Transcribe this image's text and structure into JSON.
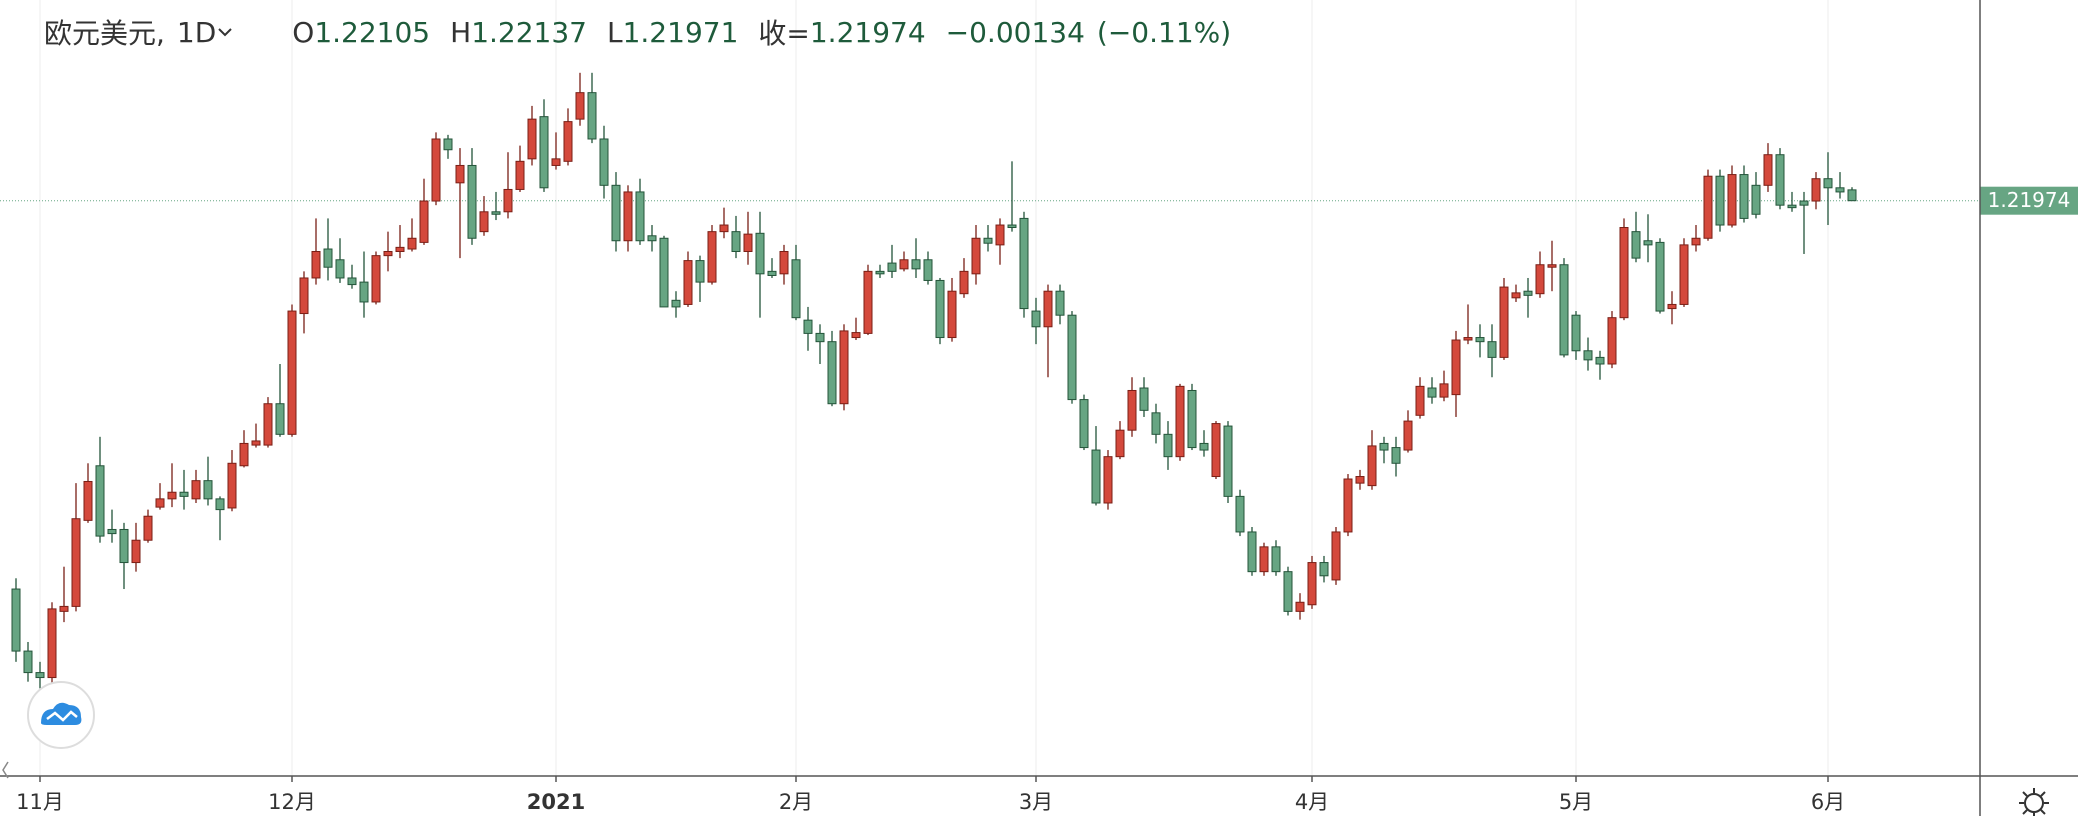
{
  "chart_data": {
    "type": "candlestick",
    "symbol": "欧元美元,",
    "interval": "1D",
    "ohlc_prefixes": [
      "O",
      "H",
      "L",
      "收="
    ],
    "change": "−0.00134",
    "change_pct": "(−0.11%)",
    "up_color": "#d4493c",
    "down_color": "#67a583",
    "ylim": [
      1.1502,
      1.244
    ],
    "categories": [
      null,
      null,
      "11月",
      null,
      null,
      null,
      null,
      null,
      null,
      null,
      null,
      null,
      null,
      null,
      null,
      null,
      null,
      null,
      null,
      null,
      null,
      null,
      null,
      "12月",
      null,
      null,
      null,
      null,
      null,
      null,
      null,
      null,
      null,
      null,
      null,
      null,
      null,
      null,
      null,
      null,
      null,
      null,
      null,
      null,
      null,
      "2021",
      null,
      null,
      null,
      null,
      null,
      null,
      null,
      null,
      null,
      null,
      null,
      null,
      null,
      null,
      null,
      null,
      null,
      null,
      null,
      "2月",
      null,
      null,
      null,
      null,
      null,
      null,
      null,
      null,
      null,
      null,
      null,
      null,
      null,
      null,
      null,
      null,
      null,
      null,
      null,
      "3月",
      null,
      null,
      null,
      null,
      null,
      null,
      null,
      null,
      null,
      null,
      null,
      null,
      null,
      null,
      null,
      null,
      null,
      null,
      null,
      null,
      null,
      null,
      "4月",
      null,
      null,
      null,
      null,
      null,
      null,
      null,
      null,
      null,
      null,
      null,
      null,
      null,
      null,
      null,
      null,
      null,
      null,
      null,
      null,
      null,
      "5月",
      null,
      null,
      null,
      null,
      null,
      null,
      null,
      null,
      null,
      null,
      null,
      null,
      null,
      null,
      null,
      null,
      null,
      null,
      null,
      null,
      "6月",
      null,
      null
    ],
    "open": [
      1.1728,
      1.1653,
      1.1627,
      1.1621,
      1.1701,
      1.1707,
      1.1811,
      1.1877,
      1.18,
      1.18,
      1.176,
      1.1787,
      1.1827,
      1.1837,
      1.1845,
      1.1837,
      1.1859,
      1.1837,
      1.1826,
      1.1877,
      1.1902,
      1.1902,
      1.1952,
      1.1915,
      1.2061,
      1.2104,
      1.2139,
      1.2126,
      1.2104,
      1.2099,
      1.2075,
      1.2131,
      1.2136,
      1.2139,
      1.2147,
      1.2197,
      1.2272,
      1.2219,
      1.224,
      1.216,
      1.2184,
      1.2184,
      1.2211,
      1.2248,
      1.2299,
      1.224,
      1.2245,
      1.2296,
      1.2328,
      1.2272,
      1.2216,
      1.2149,
      1.2208,
      1.2155,
      1.2152,
      1.2077,
      1.2072,
      1.2125,
      1.2099,
      1.216,
      1.216,
      1.2136,
      1.2158,
      1.2112,
      1.2109,
      1.2126,
      1.2053,
      1.2037,
      1.2027,
      1.1952,
      1.2032,
      1.2037,
      1.2112,
      1.2122,
      1.2115,
      1.2126,
      1.2126,
      1.2101,
      1.2032,
      1.2085,
      1.2109,
      1.2152,
      1.2144,
      1.2168,
      1.2176,
      1.2064,
      1.2045,
      1.2088,
      1.2059,
      1.1957,
      1.1896,
      1.1832,
      1.1888,
      1.192,
      1.1971,
      1.1941,
      1.1915,
      1.1888,
      1.1968,
      1.1904,
      1.1864,
      1.1925,
      1.184,
      1.1797,
      1.1749,
      1.1779,
      1.1749,
      1.1701,
      1.1709,
      1.176,
      1.1739,
      1.1797,
      1.1856,
      1.1853,
      1.1904,
      1.1899,
      1.1896,
      1.1938,
      1.1971,
      1.196,
      1.1963,
      1.2029,
      1.2032,
      1.2027,
      1.2008,
      1.208,
      1.2088,
      1.2085,
      1.2117,
      1.212,
      1.2059,
      1.2016,
      1.2008,
      1.2,
      1.2056,
      1.216,
      1.2149,
      1.2147,
      1.2067,
      1.2072,
      1.2144,
      1.2152,
      1.2227,
      1.2168,
      1.2229,
      1.2216,
      1.2216,
      1.2253,
      1.2192,
      1.2197,
      1.2197,
      1.2224,
      1.2213,
      1.22105
    ],
    "high": [
      1.1741,
      1.1664,
      1.164,
      1.1712,
      1.1755,
      1.1856,
      1.188,
      1.1912,
      1.1824,
      1.1808,
      1.1808,
      1.1824,
      1.1856,
      1.188,
      1.1872,
      1.1872,
      1.1888,
      1.184,
      1.1896,
      1.192,
      1.1928,
      1.196,
      1.2,
      1.2072,
      1.2112,
      1.2176,
      1.2176,
      1.2152,
      1.212,
      1.2136,
      1.2136,
      1.216,
      1.2168,
      1.2176,
      1.2224,
      1.228,
      1.2277,
      1.2261,
      1.2261,
      1.2203,
      1.2208,
      1.2256,
      1.2264,
      1.2312,
      1.232,
      1.228,
      1.2309,
      1.2352,
      1.2352,
      1.2288,
      1.2232,
      1.2216,
      1.2224,
      1.2168,
      1.2155,
      1.2088,
      1.2136,
      1.2131,
      1.2168,
      1.2189,
      1.2179,
      1.2184,
      1.2184,
      1.2128,
      1.2144,
      1.2144,
      1.2069,
      1.2048,
      1.204,
      1.2048,
      1.2056,
      1.212,
      1.212,
      1.2144,
      1.2136,
      1.2152,
      1.2136,
      1.2104,
      1.2104,
      1.2128,
      1.2168,
      1.2168,
      1.2176,
      1.2245,
      1.2184,
      1.208,
      1.2096,
      1.2096,
      1.2064,
      1.1963,
      1.1925,
      1.1896,
      1.1931,
      1.1984,
      1.1984,
      1.1952,
      1.1931,
      1.1976,
      1.1976,
      1.192,
      1.1931,
      1.1931,
      1.1848,
      1.1803,
      1.1784,
      1.1787,
      1.1755,
      1.1723,
      1.1768,
      1.1768,
      1.1803,
      1.1867,
      1.1872,
      1.192,
      1.1912,
      1.1912,
      1.1944,
      1.1984,
      1.1984,
      1.1992,
      1.204,
      1.2072,
      1.2048,
      1.2048,
      1.2104,
      1.2096,
      1.2104,
      1.2136,
      1.2149,
      1.2128,
      1.2064,
      1.2032,
      1.2016,
      1.2064,
      1.2176,
      1.2184,
      1.2181,
      1.2152,
      1.2088,
      1.2152,
      1.2168,
      1.2235,
      1.2235,
      1.224,
      1.224,
      1.2232,
      1.2267,
      1.2261,
      1.2208,
      1.2208,
      1.2232,
      1.2256,
      1.2232,
      1.22137
    ],
    "low": [
      1.164,
      1.1616,
      1.1608,
      1.1613,
      1.1688,
      1.1701,
      1.1808,
      1.1784,
      1.1784,
      1.1728,
      1.1749,
      1.1784,
      1.1824,
      1.1827,
      1.1824,
      1.1832,
      1.1829,
      1.1787,
      1.1822,
      1.1875,
      1.1899,
      1.1899,
      1.1912,
      1.1912,
      1.2037,
      1.2096,
      1.2101,
      1.2098,
      1.2091,
      1.2056,
      1.2072,
      1.2112,
      1.2128,
      1.2136,
      1.2144,
      1.2192,
      1.2248,
      1.2128,
      1.2144,
      1.2155,
      1.2174,
      1.2176,
      1.2208,
      1.224,
      1.2208,
      1.2235,
      1.224,
      1.2288,
      1.2267,
      1.22,
      1.2136,
      1.2136,
      1.2144,
      1.2136,
      1.2069,
      1.2056,
      1.2069,
      1.2075,
      1.2096,
      1.2152,
      1.2128,
      1.212,
      1.2056,
      1.2104,
      1.2096,
      1.2053,
      1.2016,
      1.2,
      1.1949,
      1.1944,
      1.2029,
      1.2035,
      1.2104,
      1.2104,
      1.2112,
      1.2104,
      1.2096,
      1.2024,
      1.2027,
      1.208,
      1.2096,
      1.2136,
      1.212,
      1.216,
      1.2056,
      1.2024,
      1.1984,
      1.2048,
      1.1952,
      1.1896,
      1.1829,
      1.1824,
      1.1885,
      1.1912,
      1.1936,
      1.1904,
      1.1872,
      1.1883,
      1.1896,
      1.1888,
      1.1861,
      1.1832,
      1.1792,
      1.1744,
      1.1744,
      1.1744,
      1.1696,
      1.1691,
      1.1704,
      1.1736,
      1.1733,
      1.1792,
      1.1848,
      1.1848,
      1.188,
      1.1864,
      1.1893,
      1.1934,
      1.1952,
      1.1955,
      1.1936,
      1.2024,
      1.2008,
      1.1984,
      1.2005,
      1.2075,
      1.2056,
      1.208,
      1.2088,
      1.2008,
      1.2005,
      1.1992,
      1.1981,
      1.1995,
      1.2053,
      1.2123,
      1.2123,
      1.2061,
      1.2048,
      1.2069,
      1.2136,
      1.2149,
      1.216,
      1.2165,
      1.2171,
      1.2176,
      1.2208,
      1.2187,
      1.2184,
      1.2133,
      1.2187,
      1.2168,
      1.22,
      1.21971
    ],
    "close": [
      1.1653,
      1.1627,
      1.1621,
      1.1704,
      1.1707,
      1.1813,
      1.1858,
      1.1792,
      1.1795,
      1.176,
      1.1787,
      1.1816,
      1.1837,
      1.1845,
      1.184,
      1.1859,
      1.1837,
      1.1824,
      1.188,
      1.1904,
      1.1907,
      1.1952,
      1.1915,
      1.2064,
      1.2104,
      1.2136,
      1.2117,
      1.2104,
      1.2096,
      1.2075,
      1.2131,
      1.2136,
      1.2141,
      1.2152,
      1.2197,
      1.2272,
      1.2259,
      1.224,
      1.2152,
      1.2184,
      1.2181,
      1.2211,
      1.2245,
      1.2296,
      1.2213,
      1.2248,
      1.2293,
      1.2328,
      1.2272,
      1.2216,
      1.2149,
      1.2208,
      1.2149,
      1.2149,
      1.2069,
      1.2069,
      1.2125,
      1.2099,
      1.216,
      1.2168,
      1.2136,
      1.2157,
      1.2109,
      1.2107,
      1.2136,
      1.2056,
      1.2037,
      1.2027,
      1.1952,
      1.204,
      1.2038,
      1.2112,
      1.2109,
      1.2112,
      1.2126,
      1.2115,
      1.2101,
      1.2032,
      1.2088,
      1.2112,
      1.2152,
      1.2146,
      1.2168,
      1.2165,
      1.2067,
      1.2045,
      1.2088,
      1.2059,
      1.1957,
      1.1899,
      1.1832,
      1.1888,
      1.192,
      1.1968,
      1.1944,
      1.1915,
      1.1888,
      1.1973,
      1.1899,
      1.1896,
      1.1928,
      1.184,
      1.1797,
      1.1749,
      1.1779,
      1.1749,
      1.1701,
      1.1712,
      1.176,
      1.1744,
      1.1797,
      1.1861,
      1.1864,
      1.1901,
      1.1896,
      1.188,
      1.1931,
      1.1973,
      1.196,
      1.1976,
      1.2029,
      1.2032,
      1.2027,
      1.2008,
      1.2093,
      1.2086,
      1.2083,
      1.212,
      1.212,
      1.2011,
      1.2016,
      1.2005,
      1.2,
      1.2056,
      1.2165,
      1.2128,
      1.2144,
      1.2064,
      1.2072,
      1.2144,
      1.2152,
      1.2227,
      1.2168,
      1.2229,
      1.2176,
      1.2181,
      1.2253,
      1.2192,
      1.2189,
      1.2192,
      1.2224,
      1.2213,
      1.2208,
      1.21974
    ]
  }
}
